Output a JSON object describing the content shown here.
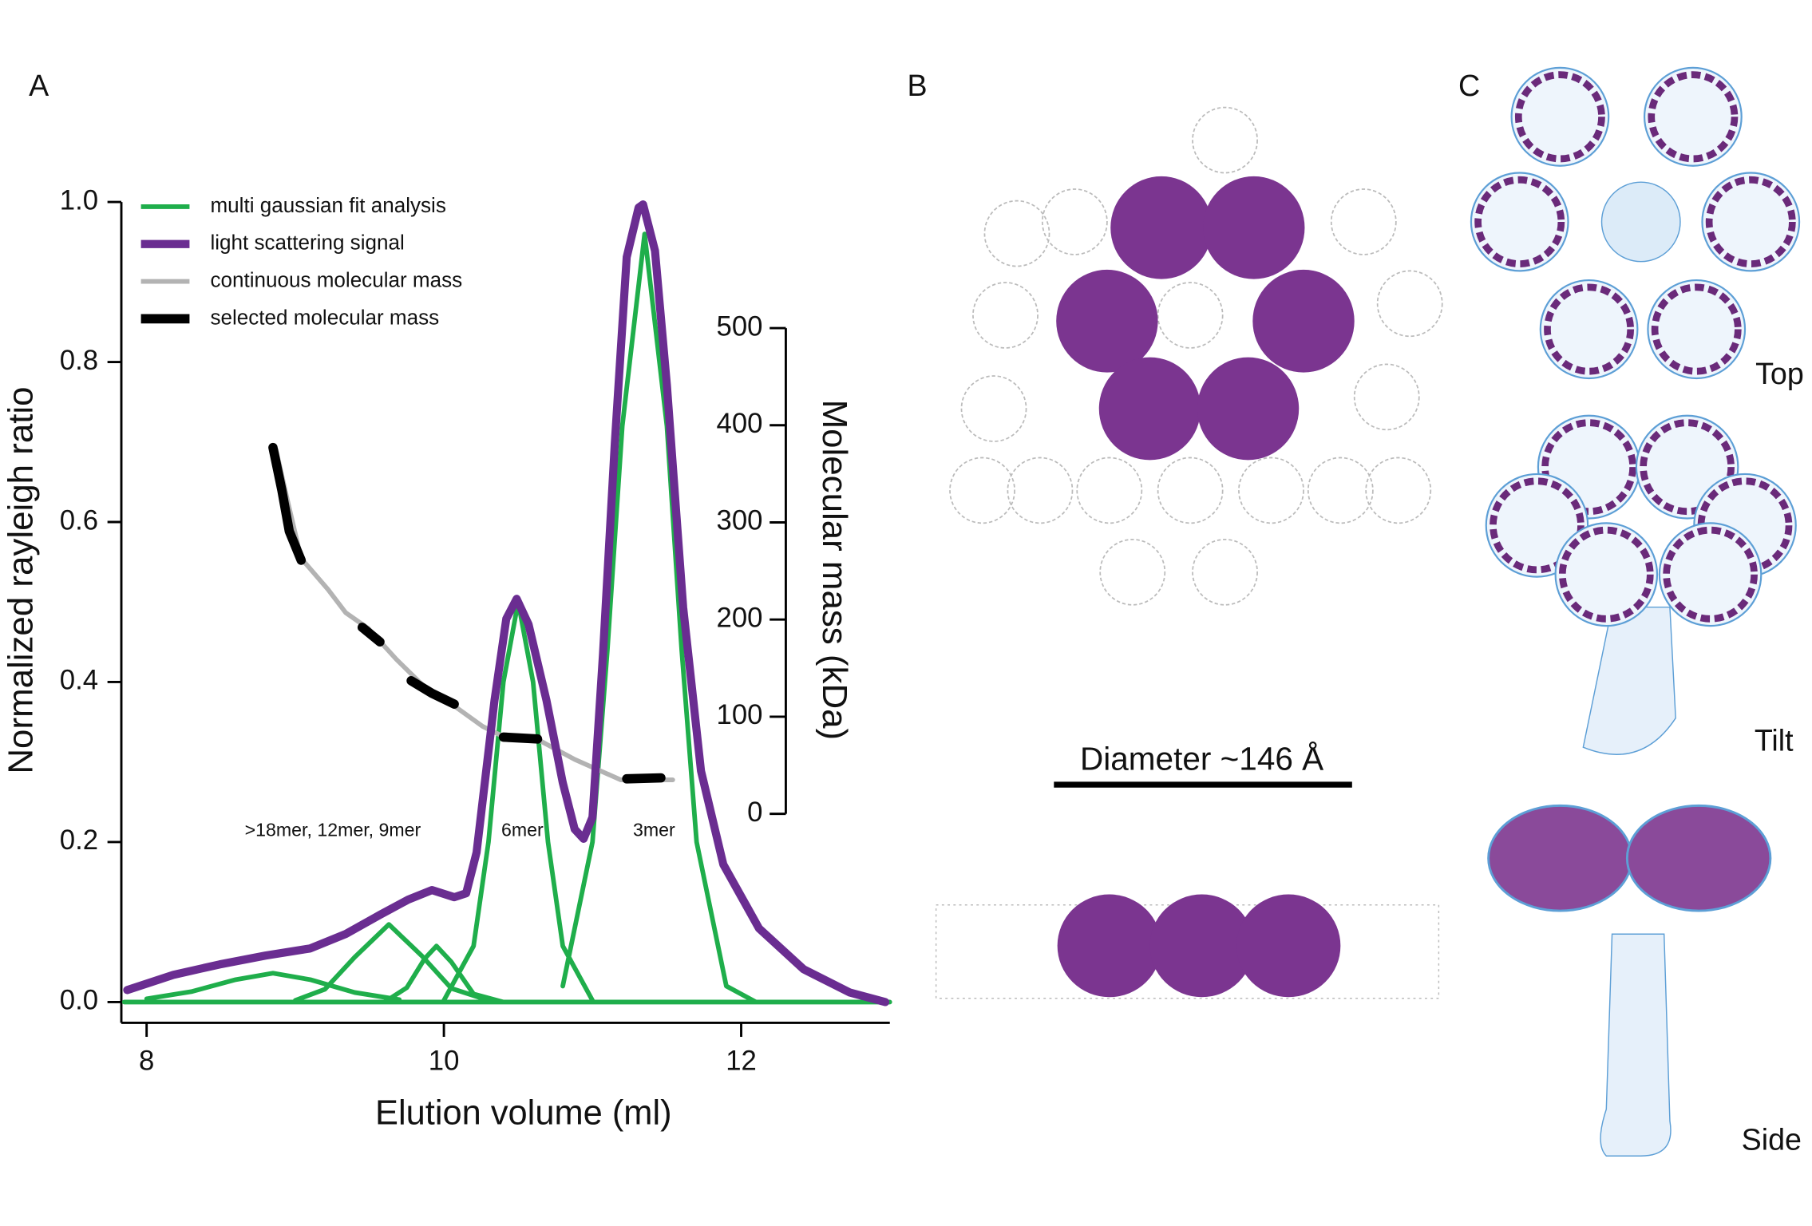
{
  "panel_labels": [
    "A",
    "B",
    "C"
  ],
  "structure": {
    "scale_bar": "Diameter ~146 Å",
    "views": [
      "Top",
      "Tilt",
      "Side"
    ]
  },
  "chart_data": {
    "type": "line",
    "xlabel": "Elution volume (ml)",
    "ylabel": "Normalized rayleigh ratio",
    "y2label": "Molecular mass (kDa)",
    "xlim": [
      7.83,
      13.0
    ],
    "xticks": [
      8,
      10,
      12
    ],
    "ylim": [
      -0.026,
      1.0
    ],
    "yticks": [
      {
        "value": 0,
        "label": "0.0"
      },
      {
        "value": 0.2,
        "label": "0.2"
      },
      {
        "value": 0.4,
        "label": "0.4"
      },
      {
        "value": 0.6,
        "label": "0.6"
      },
      {
        "value": 0.8,
        "label": "0.8"
      },
      {
        "value": 1.0,
        "label": "1.0"
      }
    ],
    "y2lim": [
      0,
      500
    ],
    "y2ticks": [
      0,
      100,
      200,
      300,
      400,
      500
    ],
    "legend": "upper left",
    "annotations": [
      ">18mer, 12mer, 9mer",
      "6mer",
      "3mer"
    ],
    "series": [
      {
        "name": "multi gaussian fit analysis",
        "color": "#1fae4b",
        "x": [
          8.0,
          8.3,
          8.6,
          8.85,
          9.1,
          9.4,
          9.7,
          null,
          9.0,
          9.2,
          9.4,
          9.63,
          9.85,
          10.05,
          10.3,
          null,
          9.6,
          9.75,
          9.87,
          9.95,
          10.05,
          10.2,
          10.4,
          null,
          10.0,
          10.2,
          10.3,
          10.4,
          10.5,
          10.6,
          10.7,
          10.8,
          11.0,
          null,
          10.8,
          11.0,
          11.1,
          11.2,
          11.35,
          11.5,
          11.6,
          11.7,
          11.9,
          12.1,
          null,
          7.85,
          13.0
        ],
        "values": [
          0.004,
          0.013,
          0.028,
          0.036,
          0.028,
          0.012,
          0.003,
          null,
          0.002,
          0.016,
          0.056,
          0.097,
          0.058,
          0.017,
          0.002,
          null,
          0.0,
          0.018,
          0.054,
          0.07,
          0.05,
          0.01,
          0.0,
          null,
          0.002,
          0.07,
          0.2,
          0.4,
          0.5,
          0.4,
          0.2,
          0.07,
          0.002,
          null,
          0.02,
          0.2,
          0.44,
          0.72,
          0.96,
          0.72,
          0.44,
          0.2,
          0.02,
          0.0,
          null,
          0.0,
          0.0
        ]
      },
      {
        "name": "light scattering signal",
        "color": "#6a2d91",
        "x": [
          7.87,
          8.18,
          8.49,
          8.8,
          9.1,
          9.34,
          9.57,
          9.76,
          9.92,
          10.07,
          10.15,
          10.22,
          10.34,
          10.42,
          10.49,
          10.57,
          10.69,
          10.8,
          10.88,
          10.94,
          11.0,
          11.07,
          11.15,
          11.23,
          11.31,
          11.34,
          11.42,
          11.5,
          11.61,
          11.73,
          11.88,
          12.12,
          12.42,
          12.73,
          12.97
        ],
        "values": [
          0.015,
          0.034,
          0.047,
          0.058,
          0.067,
          0.085,
          0.109,
          0.128,
          0.14,
          0.131,
          0.136,
          0.187,
          0.377,
          0.479,
          0.504,
          0.472,
          0.377,
          0.274,
          0.216,
          0.204,
          0.231,
          0.435,
          0.698,
          0.931,
          0.993,
          0.997,
          0.939,
          0.771,
          0.493,
          0.289,
          0.172,
          0.092,
          0.041,
          0.012,
          0.0
        ]
      },
      {
        "name": "continuous molecular mass",
        "color": "#b3b3b3",
        "axis": "y2",
        "x": [
          8.87,
          8.95,
          9.04,
          9.22,
          9.34,
          9.49,
          9.68,
          9.88,
          10.07,
          10.26,
          10.42,
          10.65,
          10.88,
          11.19,
          11.54
        ],
        "values": [
          375,
          321,
          263,
          231,
          207,
          191,
          159,
          129,
          111,
          90,
          78,
          75,
          56,
          35,
          35
        ]
      },
      {
        "name": "selected molecular mass",
        "color": "#000000",
        "axis": "y2",
        "x": [
          8.85,
          8.91,
          8.96,
          9.04,
          null,
          9.45,
          9.57,
          null,
          9.78,
          9.92,
          10.07,
          null,
          10.4,
          10.63,
          null,
          11.23,
          11.46
        ],
        "values": [
          377,
          333,
          291,
          261,
          null,
          192,
          177,
          null,
          137,
          124,
          113,
          null,
          79,
          77,
          null,
          36,
          37
        ]
      }
    ]
  }
}
